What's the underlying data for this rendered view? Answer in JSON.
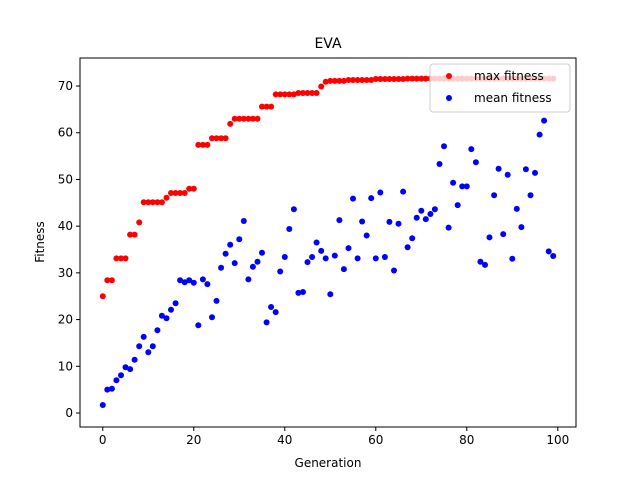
{
  "chart_data": {
    "type": "scatter",
    "title": "EVA",
    "xlabel": "Generation",
    "ylabel": "Fitness",
    "xlim": [
      -5,
      104
    ],
    "ylim": [
      -3,
      76
    ],
    "xticks": [
      0,
      20,
      40,
      60,
      80,
      100
    ],
    "yticks": [
      0,
      10,
      20,
      30,
      40,
      50,
      60,
      70
    ],
    "grid": false,
    "legend_position": "top-right",
    "series": [
      {
        "name": "max fitness",
        "color": "#ff0000",
        "x": [
          0,
          1,
          2,
          3,
          4,
          5,
          6,
          7,
          8,
          9,
          10,
          11,
          12,
          13,
          14,
          15,
          16,
          17,
          18,
          19,
          20,
          21,
          22,
          23,
          24,
          25,
          26,
          27,
          28,
          29,
          30,
          31,
          32,
          33,
          34,
          35,
          36,
          37,
          38,
          39,
          40,
          41,
          42,
          43,
          44,
          45,
          46,
          47,
          48,
          49,
          50,
          51,
          52,
          53,
          54,
          55,
          56,
          57,
          58,
          59,
          60,
          61,
          62,
          63,
          64,
          65,
          66,
          67,
          68,
          69,
          70,
          71,
          72,
          73,
          74,
          75,
          76,
          77,
          78,
          79,
          80,
          81,
          82,
          83,
          84,
          85,
          86,
          87,
          88,
          89,
          90,
          91,
          92,
          93,
          94,
          95,
          96,
          97,
          98,
          99
        ],
        "y": [
          25.0,
          28.4,
          28.4,
          33.1,
          33.1,
          33.1,
          38.2,
          38.2,
          40.8,
          45.1,
          45.1,
          45.1,
          45.1,
          45.1,
          46.1,
          47.1,
          47.1,
          47.1,
          47.1,
          48.0,
          48.0,
          57.4,
          57.4,
          57.4,
          58.8,
          58.8,
          58.8,
          58.8,
          61.9,
          63.0,
          63.0,
          63.0,
          63.0,
          63.0,
          63.0,
          65.6,
          65.6,
          65.6,
          68.2,
          68.2,
          68.2,
          68.2,
          68.2,
          68.5,
          68.5,
          68.5,
          68.5,
          68.5,
          69.9,
          70.9,
          71.1,
          71.1,
          71.1,
          71.1,
          71.3,
          71.3,
          71.3,
          71.3,
          71.3,
          71.3,
          71.5,
          71.5,
          71.5,
          71.5,
          71.5,
          71.5,
          71.5,
          71.6,
          71.6,
          71.6,
          71.6,
          71.6,
          71.6,
          71.6,
          71.6,
          71.6,
          71.6,
          71.6,
          71.6,
          71.6,
          71.6,
          71.6,
          71.6,
          71.6,
          71.6,
          71.6,
          71.6,
          71.6,
          71.6,
          71.6,
          71.6,
          71.6,
          71.6,
          71.6,
          71.6,
          71.6,
          71.6,
          71.6,
          71.6,
          71.6
        ]
      },
      {
        "name": "mean fitness",
        "color": "#0000ff",
        "x": [
          0,
          1,
          2,
          3,
          4,
          5,
          6,
          7,
          8,
          9,
          10,
          11,
          12,
          13,
          14,
          15,
          16,
          17,
          18,
          19,
          20,
          21,
          22,
          23,
          24,
          25,
          26,
          27,
          28,
          29,
          30,
          31,
          32,
          33,
          34,
          35,
          36,
          37,
          38,
          39,
          40,
          41,
          42,
          43,
          44,
          45,
          46,
          47,
          48,
          49,
          50,
          51,
          52,
          53,
          54,
          55,
          56,
          57,
          58,
          59,
          60,
          61,
          62,
          63,
          64,
          65,
          66,
          67,
          68,
          69,
          70,
          71,
          72,
          73,
          74,
          75,
          76,
          77,
          78,
          79,
          80,
          81,
          82,
          83,
          84,
          85,
          86,
          87,
          88,
          89,
          90,
          91,
          92,
          93,
          94,
          95,
          96,
          97,
          98,
          99
        ],
        "y": [
          1.7,
          5.0,
          5.2,
          7.0,
          8.1,
          9.8,
          9.4,
          11.4,
          14.3,
          16.3,
          13.0,
          14.3,
          17.7,
          20.8,
          20.3,
          22.1,
          23.5,
          28.4,
          28.0,
          28.4,
          27.9,
          18.8,
          28.6,
          27.6,
          20.5,
          24.0,
          31.1,
          34.1,
          36.0,
          32.1,
          37.2,
          41.1,
          28.6,
          31.3,
          32.4,
          34.3,
          19.4,
          22.7,
          21.6,
          30.3,
          33.4,
          39.4,
          43.6,
          25.7,
          25.9,
          32.3,
          33.4,
          36.5,
          34.7,
          33.1,
          25.4,
          33.7,
          41.3,
          30.8,
          35.3,
          45.9,
          33.1,
          41.0,
          38.0,
          46.0,
          33.1,
          47.2,
          33.4,
          40.9,
          30.5,
          40.5,
          47.4,
          35.5,
          37.4,
          41.8,
          43.3,
          41.5,
          42.6,
          43.6,
          53.3,
          57.1,
          39.7,
          49.3,
          44.5,
          48.5,
          48.5,
          56.5,
          53.7,
          32.4,
          31.7,
          37.6,
          46.6,
          52.3,
          38.3,
          51.0,
          33.0,
          43.7,
          39.8,
          52.2,
          46.6,
          51.4,
          59.6,
          62.6,
          34.6,
          33.6
        ]
      }
    ]
  }
}
